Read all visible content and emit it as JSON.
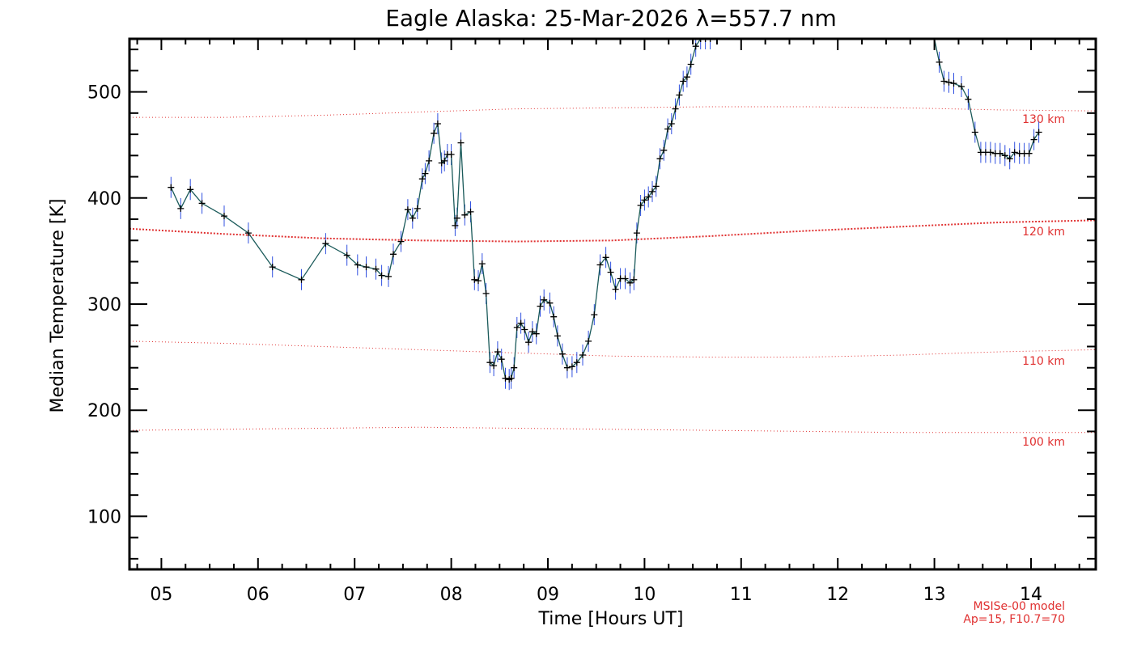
{
  "chart_data": {
    "type": "line",
    "title": "Eagle Alaska: 25-Mar-2026 λ=557.7 nm",
    "xlabel": "Time [Hours UT]",
    "ylabel": "Median Temperature [K]",
    "xlim": [
      4.67,
      14.67
    ],
    "ylim": [
      50,
      550
    ],
    "x_ticks": [
      5,
      6,
      7,
      8,
      9,
      10,
      11,
      12,
      13,
      14
    ],
    "x_tick_labels": [
      "05",
      "06",
      "07",
      "08",
      "09",
      "10",
      "11",
      "12",
      "13",
      "14"
    ],
    "y_ticks": [
      100,
      200,
      300,
      400,
      500
    ],
    "y_tick_labels": [
      "100",
      "200",
      "300",
      "400",
      "500"
    ],
    "grid": false,
    "colors": {
      "line": "#1a5a5a",
      "error_bars": "#3050e0",
      "markers": "#000000",
      "reference": "#e03030"
    },
    "series": [
      {
        "x": [
          5.1,
          5.2,
          5.3,
          5.42,
          5.65,
          5.9,
          6.15,
          6.45,
          6.7,
          6.92,
          7.03,
          7.12,
          7.22,
          7.28,
          7.35,
          7.4,
          7.48,
          7.55,
          7.6,
          7.65,
          7.7,
          7.73,
          7.77,
          7.82,
          7.86,
          7.9,
          7.93,
          7.96,
          8.0,
          8.04,
          8.06,
          8.1,
          8.14,
          8.2,
          8.24,
          8.28,
          8.32,
          8.36,
          8.4,
          8.44,
          8.48,
          8.52,
          8.56,
          8.6,
          8.62,
          8.65,
          8.68,
          8.72,
          8.76,
          8.8,
          8.84,
          8.88,
          8.92,
          8.96,
          9.02,
          9.06,
          9.1,
          9.15,
          9.2,
          9.25,
          9.3,
          9.36,
          9.42,
          9.48,
          9.54,
          9.6,
          9.65,
          9.7,
          9.75,
          9.8,
          9.85,
          9.89,
          9.92,
          9.96,
          10.0,
          10.04,
          10.08,
          10.12,
          10.16,
          10.2,
          10.24,
          10.28,
          10.32,
          10.36,
          10.4,
          10.44,
          10.48,
          10.53,
          10.58,
          10.63,
          10.68
        ],
        "y": [
          410,
          390,
          408,
          395,
          383,
          367,
          335,
          323,
          357,
          346,
          337,
          335,
          333,
          327,
          326,
          347,
          359,
          389,
          381,
          390,
          418,
          423,
          435,
          461,
          470,
          433,
          435,
          441,
          441,
          374,
          381,
          452,
          384,
          387,
          323,
          322,
          338,
          310,
          245,
          242,
          255,
          248,
          230,
          229,
          230,
          240,
          278,
          282,
          276,
          264,
          274,
          272,
          298,
          304,
          301,
          288,
          270,
          253,
          240,
          241,
          245,
          252,
          265,
          290,
          337,
          344,
          330,
          314,
          324,
          324,
          320,
          323,
          367,
          393,
          398,
          401,
          406,
          411,
          437,
          445,
          465,
          470,
          484,
          497,
          510,
          514,
          526,
          543,
          550,
          550,
          550
        ]
      },
      {
        "x": [
          13.0,
          13.05,
          13.1,
          13.15,
          13.2,
          13.28,
          13.35,
          13.42,
          13.48,
          13.53,
          13.58,
          13.63,
          13.68,
          13.73,
          13.78,
          13.83,
          13.88,
          13.93,
          13.98,
          14.03,
          14.08
        ],
        "y": [
          550,
          528,
          510,
          509,
          508,
          505,
          493,
          462,
          443,
          443,
          443,
          442,
          442,
          440,
          437,
          443,
          442,
          442,
          442,
          455,
          462
        ]
      }
    ],
    "reference_lines": [
      {
        "label": "130 km",
        "y": [
          476,
          476,
          478,
          481,
          484,
          485,
          486,
          486,
          485,
          483,
          482
        ]
      },
      {
        "label": "120 km",
        "y": [
          371,
          366,
          362,
          360,
          359,
          360,
          364,
          369,
          373,
          377,
          379
        ]
      },
      {
        "label": "110 km",
        "y": [
          265,
          263,
          260,
          257,
          254,
          251,
          250,
          250,
          252,
          255,
          257
        ]
      },
      {
        "label": "100 km",
        "y": [
          181,
          182,
          183,
          184,
          183,
          182,
          181,
          180,
          179,
          179,
          179
        ]
      }
    ],
    "reference_x": [
      4.67,
      5.67,
      6.67,
      7.67,
      8.67,
      9.67,
      10.67,
      11.67,
      12.67,
      13.67,
      14.67
    ],
    "notes": [
      "MSISe-00 model",
      "Ap=15, F10.7=70"
    ]
  }
}
